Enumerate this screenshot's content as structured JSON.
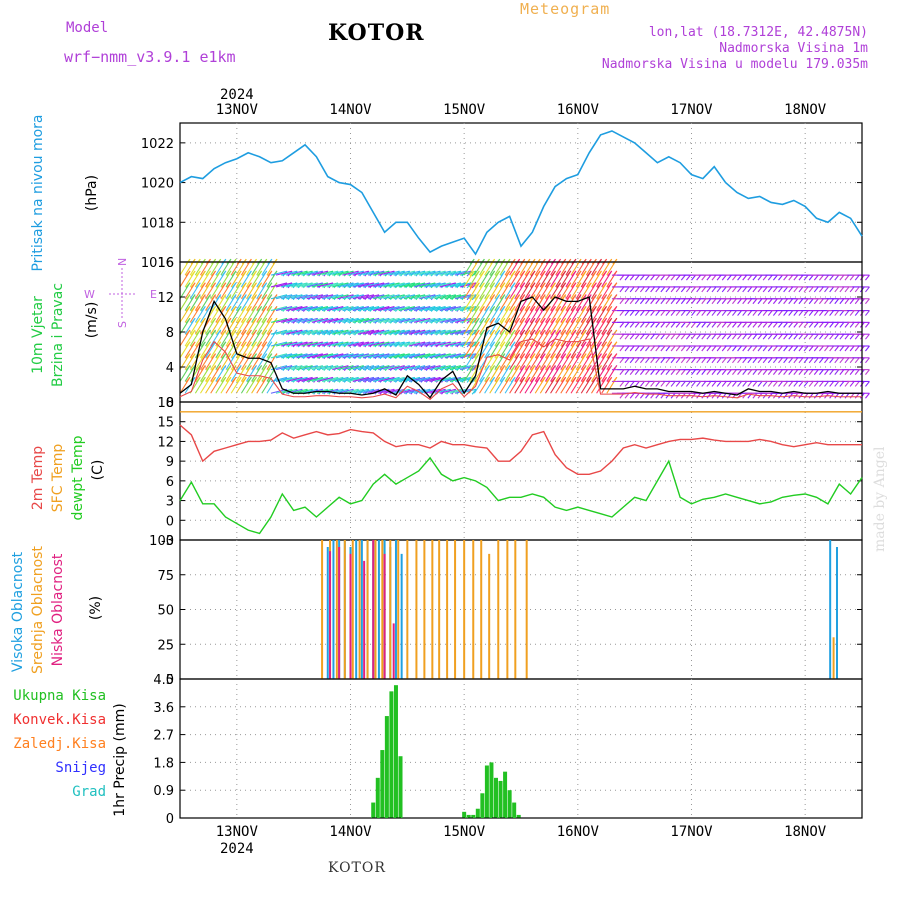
{
  "header": {
    "model_label": "Model",
    "model_name": "wrf−nmm_v3.9.1  e1km",
    "title": "KOTOR",
    "chart_kind": "Meteogram",
    "coords": "lon,lat (18.7312E, 42.4875N)",
    "elevation": "Nadmorska Visina 1m",
    "model_elevation": "Nadmorska Visina u modelu 179.035m",
    "year_top": "2024",
    "year_bottom": "2024",
    "footer": "KOTOR",
    "credit": "made by Angel"
  },
  "colors": {
    "pressure": "#1e9de0",
    "temp2m": "#e84848",
    "sfc": "#f0a020",
    "dewpt": "#22cc22",
    "high_cloud": "#20a0e0",
    "mid_cloud": "#f0a020",
    "low_cloud": "#e02080",
    "total_precip": "#22c022",
    "conv_precip": "#f03030",
    "frozen_precip": "#ff8020",
    "snow": "#3030ff",
    "hail": "#20c0c0",
    "wind_purple": "#a020f0",
    "wind_legend": "#c060e0"
  },
  "chart_data": [
    {
      "type": "line",
      "panel": "pressure",
      "ylabel_lines": [
        "Pritisak na nivou mora",
        "(hPa)"
      ],
      "ylim": [
        1016,
        1023
      ],
      "yticks": [
        1016,
        1018,
        1020,
        1022
      ],
      "xlim": [
        12.5,
        18.5
      ],
      "xticks": [
        13,
        14,
        15,
        16,
        17,
        18
      ],
      "xtick_labels": [
        "13NOV",
        "14NOV",
        "15NOV",
        "16NOV",
        "17NOV",
        "18NOV"
      ],
      "grid": true,
      "series": [
        {
          "x": [
            12.5,
            12.6,
            12.7,
            12.8,
            12.9,
            13.0,
            13.1,
            13.2,
            13.3,
            13.4,
            13.5,
            13.6,
            13.7,
            13.8,
            13.9,
            14.0,
            14.1,
            14.2,
            14.3,
            14.4,
            14.5,
            14.6,
            14.7,
            14.8,
            14.9,
            15.0,
            15.1,
            15.2,
            15.3,
            15.4,
            15.5,
            15.6,
            15.7,
            15.8,
            15.9,
            16.0,
            16.1,
            16.2,
            16.3,
            16.4,
            16.5,
            16.6,
            16.7,
            16.8,
            16.9,
            17.0,
            17.1,
            17.2,
            17.3,
            17.4,
            17.5,
            17.6,
            17.7,
            17.8,
            17.9,
            18.0,
            18.1,
            18.2,
            18.3,
            18.4,
            18.5
          ],
          "y": [
            1020.0,
            1020.3,
            1020.2,
            1020.7,
            1021.0,
            1021.2,
            1021.5,
            1021.3,
            1021.0,
            1021.1,
            1021.5,
            1021.9,
            1021.3,
            1020.3,
            1020.0,
            1019.9,
            1019.5,
            1018.5,
            1017.5,
            1018.0,
            1018.0,
            1017.2,
            1016.5,
            1016.8,
            1017.0,
            1017.2,
            1016.4,
            1017.5,
            1018.0,
            1018.3,
            1016.8,
            1017.5,
            1018.8,
            1019.8,
            1020.2,
            1020.4,
            1021.5,
            1022.4,
            1022.6,
            1022.3,
            1022.0,
            1021.5,
            1021.0,
            1021.3,
            1021.0,
            1020.4,
            1020.2,
            1020.8,
            1020.0,
            1019.5,
            1019.2,
            1019.3,
            1019.0,
            1018.9,
            1019.1,
            1018.8,
            1018.2,
            1018.0,
            1018.5,
            1018.2,
            1017.3
          ]
        }
      ]
    },
    {
      "type": "line",
      "panel": "wind",
      "ylabel_lines": [
        "10m Vjetar",
        "Brzina i Pravac",
        "(m/s)"
      ],
      "compass": {
        "w": "W",
        "e": "E",
        "n": "N",
        "s": "S"
      },
      "ylim": [
        0,
        16
      ],
      "yticks": [
        0,
        4,
        8,
        12,
        16
      ],
      "xlim": [
        12.5,
        18.5
      ],
      "grid": true,
      "series": [
        {
          "name": "speed",
          "x": [
            12.5,
            12.6,
            12.7,
            12.8,
            12.9,
            13.0,
            13.1,
            13.2,
            13.3,
            13.4,
            13.5,
            13.6,
            13.7,
            13.8,
            13.9,
            14.0,
            14.1,
            14.2,
            14.3,
            14.4,
            14.5,
            14.6,
            14.7,
            14.8,
            14.9,
            15.0,
            15.1,
            15.2,
            15.3,
            15.4,
            15.5,
            15.6,
            15.7,
            15.8,
            15.9,
            16.0,
            16.1,
            16.2,
            16.3,
            16.4,
            16.5,
            16.6,
            16.7,
            16.8,
            16.9,
            17.0,
            17.1,
            17.2,
            17.3,
            17.4,
            17.5,
            17.6,
            17.7,
            17.8,
            17.9,
            18.0,
            18.1,
            18.2,
            18.3,
            18.4,
            18.5
          ],
          "y": [
            1.0,
            2.0,
            8.0,
            11.5,
            9.5,
            5.5,
            5.0,
            5.0,
            4.5,
            1.5,
            1.0,
            1.0,
            1.2,
            1.2,
            1.0,
            1.0,
            0.8,
            1.0,
            1.5,
            0.8,
            3.0,
            2.0,
            0.5,
            2.5,
            3.5,
            1.0,
            3.0,
            8.5,
            9.0,
            8.0,
            11.5,
            12.0,
            10.5,
            12.0,
            11.5,
            11.5,
            12.0,
            1.5,
            1.5,
            1.5,
            1.8,
            1.5,
            1.5,
            1.2,
            1.2,
            1.2,
            1.0,
            1.2,
            1.0,
            0.8,
            1.5,
            1.2,
            1.2,
            1.0,
            1.2,
            1.0,
            1.0,
            1.2,
            1.0,
            1.0,
            1.0
          ]
        }
      ]
    },
    {
      "type": "line",
      "panel": "temperature",
      "ylabel_lines": [
        "2m Temp",
        "SFC Temp",
        "dewpt Temp",
        "(C)"
      ],
      "ylim": [
        -3,
        18
      ],
      "yticks": [
        -3,
        0,
        3,
        6,
        9,
        12,
        15,
        18
      ],
      "xlim": [
        12.5,
        18.5
      ],
      "grid": true,
      "series": [
        {
          "name": "2m",
          "x": [
            12.5,
            12.6,
            12.7,
            12.8,
            12.9,
            13.0,
            13.1,
            13.2,
            13.3,
            13.4,
            13.5,
            13.6,
            13.7,
            13.8,
            13.9,
            14.0,
            14.1,
            14.2,
            14.3,
            14.4,
            14.5,
            14.6,
            14.7,
            14.8,
            14.9,
            15.0,
            15.1,
            15.2,
            15.3,
            15.4,
            15.5,
            15.6,
            15.7,
            15.8,
            15.9,
            16.0,
            16.1,
            16.2,
            16.3,
            16.4,
            16.5,
            16.6,
            16.7,
            16.8,
            16.9,
            17.0,
            17.1,
            17.2,
            17.3,
            17.4,
            17.5,
            17.6,
            17.7,
            17.8,
            17.9,
            18.0,
            18.1,
            18.2,
            18.3,
            18.4,
            18.5
          ],
          "y": [
            14.5,
            13.0,
            9.0,
            10.5,
            11.0,
            11.5,
            12.0,
            12.0,
            12.2,
            13.3,
            12.5,
            13.0,
            13.5,
            13.0,
            13.2,
            13.8,
            13.5,
            13.3,
            12.0,
            11.2,
            11.5,
            11.5,
            11.0,
            12.0,
            11.5,
            11.5,
            11.2,
            11.0,
            9.0,
            9.0,
            10.5,
            13.0,
            13.5,
            10.0,
            8.0,
            7.0,
            7.0,
            7.5,
            9.0,
            11.0,
            11.5,
            11.0,
            11.5,
            12.0,
            12.3,
            12.3,
            12.5,
            12.2,
            12.0,
            12.0,
            12.0,
            12.3,
            12.0,
            11.5,
            11.2,
            11.5,
            11.8,
            11.5,
            11.5,
            11.5,
            11.5
          ]
        },
        {
          "name": "sfc",
          "x": [
            12.5,
            18.5
          ],
          "y": [
            16.5,
            16.5
          ]
        },
        {
          "name": "dewpt",
          "x": [
            12.5,
            12.6,
            12.7,
            12.8,
            12.9,
            13.0,
            13.1,
            13.2,
            13.3,
            13.4,
            13.5,
            13.6,
            13.7,
            13.8,
            13.9,
            14.0,
            14.1,
            14.2,
            14.3,
            14.4,
            14.5,
            14.6,
            14.7,
            14.8,
            14.9,
            15.0,
            15.1,
            15.2,
            15.3,
            15.4,
            15.5,
            15.6,
            15.7,
            15.8,
            15.9,
            16.0,
            16.1,
            16.2,
            16.3,
            16.4,
            16.5,
            16.6,
            16.7,
            16.8,
            16.9,
            17.0,
            17.1,
            17.2,
            17.3,
            17.4,
            17.5,
            17.6,
            17.7,
            17.8,
            17.9,
            18.0,
            18.1,
            18.2,
            18.3,
            18.4,
            18.5
          ],
          "y": [
            3.0,
            5.8,
            2.5,
            2.5,
            0.5,
            -0.5,
            -1.5,
            -2.0,
            0.5,
            4.0,
            1.5,
            2.0,
            0.5,
            2.0,
            3.5,
            2.5,
            3.0,
            5.5,
            7.0,
            5.5,
            6.5,
            7.5,
            9.5,
            7.0,
            6.0,
            6.5,
            6.0,
            5.0,
            3.0,
            3.5,
            3.5,
            4.0,
            3.5,
            2.0,
            1.5,
            2.0,
            1.5,
            1.0,
            0.5,
            2.0,
            3.5,
            3.0,
            6.0,
            9.0,
            3.5,
            2.5,
            3.2,
            3.5,
            4.0,
            3.5,
            3.0,
            2.5,
            2.8,
            3.5,
            3.8,
            4.0,
            3.5,
            2.5,
            5.5,
            4.0,
            6.5
          ]
        }
      ]
    },
    {
      "type": "bar",
      "panel": "cloud",
      "ylabel_lines": [
        "Visoka Oblacnost",
        "Srednja Oblacnost",
        "Niska Oblacnost",
        "(%)"
      ],
      "ylim": [
        0,
        100
      ],
      "yticks": [
        0,
        25,
        50,
        75,
        100
      ],
      "xlim": [
        12.5,
        18.5
      ],
      "grid": true,
      "series": [
        {
          "name": "high",
          "x": [
            13.8,
            13.85,
            13.9,
            13.95,
            14.0,
            14.05,
            14.1,
            14.15,
            14.2,
            14.25,
            14.3,
            14.35,
            14.4,
            14.45,
            18.22,
            18.28
          ],
          "y": [
            95,
            100,
            100,
            100,
            95,
            100,
            100,
            100,
            100,
            100,
            100,
            95,
            100,
            90,
            100,
            95
          ]
        },
        {
          "name": "mid",
          "x": [
            13.75,
            13.82,
            13.88,
            13.95,
            14.02,
            14.08,
            14.15,
            14.22,
            14.28,
            14.35,
            14.42,
            14.5,
            14.58,
            14.65,
            14.72,
            14.78,
            14.85,
            14.92,
            15.0,
            15.08,
            15.15,
            15.22,
            15.3,
            15.38,
            15.45,
            15.55,
            18.25
          ],
          "y": [
            100,
            100,
            100,
            100,
            100,
            100,
            100,
            100,
            100,
            100,
            100,
            100,
            100,
            100,
            100,
            100,
            100,
            100,
            100,
            100,
            100,
            90,
            100,
            100,
            100,
            100,
            30
          ]
        },
        {
          "name": "low",
          "x": [
            13.82,
            13.9,
            14.0,
            14.12,
            14.2,
            14.3,
            14.38
          ],
          "y": [
            92,
            95,
            90,
            85,
            100,
            90,
            40
          ]
        }
      ]
    },
    {
      "type": "bar",
      "panel": "precip",
      "ylabel_lines": [
        "1hr Precip (mm)"
      ],
      "legend": [
        "Ukupna  Kisa",
        "Konvek.Kisa",
        "Zaledj.Kisa",
        "Snijeg",
        "Grad"
      ],
      "ylim": [
        0,
        4.5
      ],
      "yticks": [
        0,
        0.9,
        1.8,
        2.7,
        3.6,
        4.5
      ],
      "xlim": [
        12.5,
        18.5
      ],
      "grid": true,
      "series": [
        {
          "name": "Ukupna  Kisa",
          "x": [
            14.2,
            14.24,
            14.28,
            14.32,
            14.36,
            14.4,
            14.44,
            15.0,
            15.04,
            15.08,
            15.12,
            15.16,
            15.2,
            15.24,
            15.28,
            15.32,
            15.36,
            15.4,
            15.44,
            15.48
          ],
          "y": [
            0.5,
            1.3,
            2.2,
            3.3,
            4.1,
            4.3,
            2.0,
            0.2,
            0.1,
            0.1,
            0.3,
            0.8,
            1.7,
            1.8,
            1.3,
            1.2,
            1.5,
            0.9,
            0.5,
            0.1
          ]
        }
      ]
    }
  ]
}
